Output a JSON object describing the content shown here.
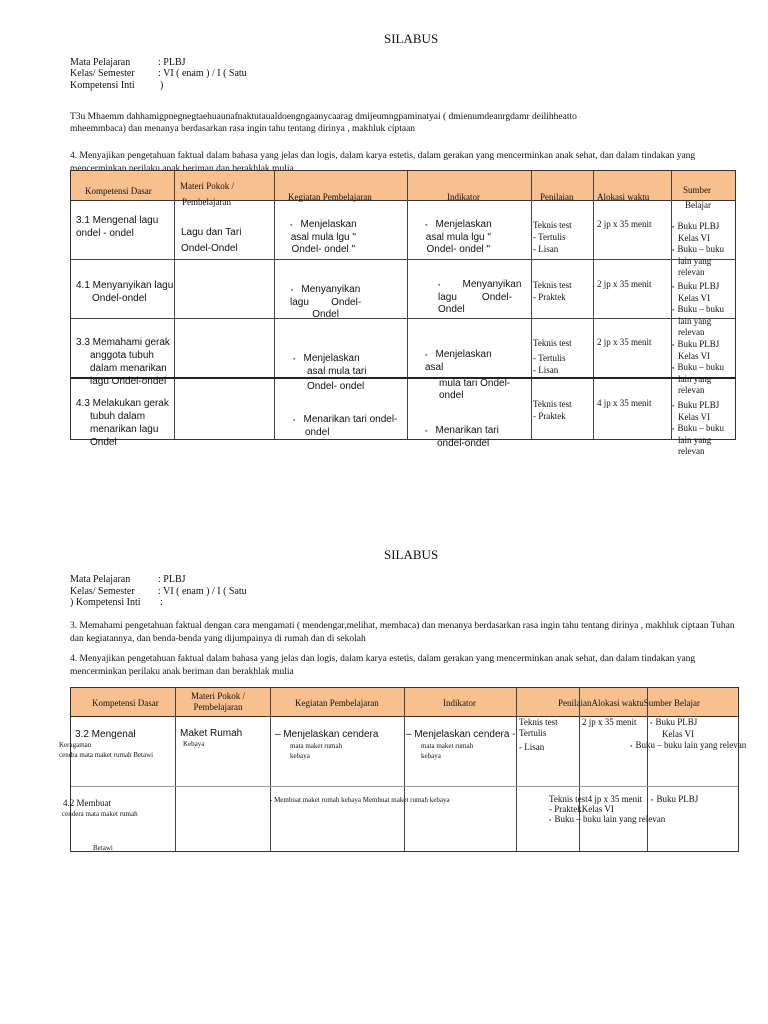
{
  "doc1": {
    "title": "SILABUS",
    "mapel_label": "Mata Pelajaran",
    "mapel_value": ": PLBJ",
    "kelas_label": "Kelas/ Semester",
    "kelas_value": ": VI ( enam ) / I ( Satu",
    "ki_label": "Kompetensi Inti",
    "ki_value": ")",
    "ki3_line1": "T3u Mhaemm dahhamigpnegnegtaehuaunafnaktutaualdoengngaanycaarag dmijeumngpaminatyai ( dmienumdeanrgdamr deilihheatto",
    "ki3_line2": "mheemmbaca) dan menanya berdasarkan rasa ingin tahu tentang dirinya , makhluk ciptaan",
    "ki4": "4. Menyajikan pengetahuan faktual dalam bahasa yang jelas dan logis, dalam karya estetis, dalam gerakan yang mencerminkan anak sehat, dan dalam tindakan yang mencerminkan perilaku anak beriman dan berakhlak mulia",
    "headers": [
      "Kompetensi Dasar",
      "Materi Pokok /",
      "Pembelajaran",
      "Kegiatan Pembelajaran",
      "Indikator",
      "Penilaian",
      "Alokasi waktu",
      "Sumber",
      "Belajar"
    ],
    "rows": [
      {
        "kd": [
          "3.1 Mengenal lagu",
          "ondel - ondel"
        ],
        "materi": [
          "Lagu dan Tari",
          "Ondel-Ondel"
        ],
        "kegiatan": [
          "Menjelaskan",
          "asal mula lgu \"",
          "Ondel- ondel \""
        ],
        "indikator": [
          "Menjelaskan",
          "asal mula lgu \"",
          "Ondel- ondel \""
        ],
        "penilaian": [
          "Teknis test",
          "- Tertulis",
          "- Lisan"
        ],
        "alokasi": "2 jp x 35 menit",
        "sumber": [
          "Buku PLBJ",
          "Kelas VI",
          "Buku – buku",
          "lain yang",
          "relevan"
        ]
      },
      {
        "kd": [
          "4.1 Menyanyikan lagu",
          "Ondel-ondel"
        ],
        "kegiatan": [
          "Menyanyikan",
          "lagu        Ondel-",
          "Ondel"
        ],
        "indikator": [
          "Menyanyikan",
          "lagu         Ondel-",
          "Ondel"
        ],
        "penilaian": [
          "Teknis test",
          "- Praktek"
        ],
        "alokasi": "2 jp x 35 menit",
        "sumber": [
          "Buku PLBJ",
          "Kelas VI",
          "Buku – buku",
          "lain yang",
          "relevan"
        ]
      },
      {
        "kd": [
          "3.3 Memahami gerak",
          "anggota tubuh",
          "dalam menarikan",
          "lagu Ondel-ondel"
        ],
        "kegiatan": [
          "Menjelaskan",
          "asal mula tari",
          "Ondel- ondel"
        ],
        "indikator": [
          "Menjelaskan",
          "asal",
          "mula tari Ondel-",
          "ondel"
        ],
        "penilaian": [
          "Teknis test",
          "- Tertulis",
          "- Lisan"
        ],
        "alokasi": "2 jp x 35 menit",
        "sumber": [
          "Buku PLBJ",
          "Kelas VI",
          "Buku – buku",
          "lain yang",
          "relevan"
        ]
      },
      {
        "kd": [
          "4.3 Melakukan gerak",
          "tubuh dalam",
          "menarikan lagu",
          "Ondel"
        ],
        "kegiatan": [
          "Menarikan tari ondel-",
          "ondel"
        ],
        "indikator": [
          "Menarikan tari",
          "ondel-ondel"
        ],
        "penilaian": [
          "Teknis test",
          "- Praktek"
        ],
        "alokasi": "4 jp x 35 menit",
        "sumber": [
          "Buku PLBJ",
          "Kelas VI",
          "Buku – buku",
          "lain yang",
          "relevan"
        ]
      }
    ]
  },
  "doc2": {
    "title": "SILABUS",
    "mapel_label": "Mata Pelajaran",
    "mapel_value": ": PLBJ",
    "kelas_label": "Kelas/ Semester",
    "kelas_value": ": VI ( enam ) / I ( Satu",
    "ki_label": ") Kompetensi Inti",
    "ki_value": ":",
    "ki3": "3. Memahami pengetahuan faktual dengan cara mengamati ( mendengar,melihat, membaca) dan menanya berdasarkan rasa ingin tahu tentang dirinya , makhluk ciptaan Tuhan dan kegiatannya, dan benda-benda yang dijumpainya di rumah dan di sekolah",
    "ki4": "4. Menyajikan pengetahuan faktual dalam bahasa yang jelas dan logis, dalam karya estetis, dalam gerakan yang mencerminkan anak sehat, dan dalam tindakan yang mencerminkan perilaku anak beriman dan berakhlak mulia",
    "headers": [
      "Kompetensi Dasar",
      "Materi Pokok /",
      "Pembelajaran",
      "Kegiatan Pembelajaran",
      "Indikator",
      "PenilaianAlokasi waktuSumber Belajar"
    ],
    "row1": {
      "kd": [
        "3.2 Mengenal",
        "Keragaman",
        "cendra mata maket rumah Betawi"
      ],
      "materi": [
        "Maket Rumah",
        "Kebaya"
      ],
      "kegiatan": [
        "– Menjelaskan cendera",
        "mata maket rumah",
        "kebaya"
      ],
      "indikator": [
        "– Menjelaskan cendera -",
        "mata maket rumah",
        "kebaya"
      ],
      "penilaian": [
        "Teknis test",
        "Tertulis",
        "- Lisan"
      ],
      "alokasi": "2 jp x 35 menit",
      "sumber": [
        "Buku PLBJ",
        "Kelas VI",
        "Buku – buku lain yang relevan"
      ]
    },
    "row2": {
      "kd": [
        "4.2 Membuat",
        "cendera mata maket rumah",
        "Betawi"
      ],
      "kegiatan": "- Membuat maket rumah kebaya Membuat maket rumah kebaya",
      "penilaian": [
        "Teknis test4 jp x 35 menit",
        "- PraktekKelas VI",
        "Buku – buku lain yang relevan"
      ],
      "sumber": "Buku PLBJ"
    }
  }
}
